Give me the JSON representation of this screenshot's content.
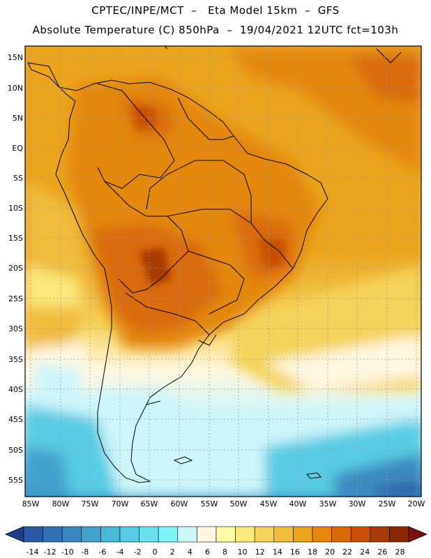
{
  "header": {
    "line1": "CPTEC/INPE/MCT  –   Eta Model 15km  –  GFS",
    "line2": "Absolute Temperature (C) 850hPa  –  19/04/2021 12UTC fct=103h"
  },
  "map": {
    "lat_labels": [
      "15N",
      "10N",
      "5N",
      "EQ",
      "5S",
      "10S",
      "15S",
      "20S",
      "25S",
      "30S",
      "35S",
      "40S",
      "45S",
      "50S",
      "55S"
    ],
    "lon_labels": [
      "85W",
      "80W",
      "75W",
      "70W",
      "65W",
      "60W",
      "55W",
      "50W",
      "45W",
      "40W",
      "35W",
      "30W",
      "25W",
      "20W"
    ]
  },
  "legend": {
    "labels": [
      "-14",
      "-12",
      "-10",
      "-8",
      "-6",
      "-4",
      "-2",
      "0",
      "2",
      "4",
      "6",
      "8",
      "10",
      "12",
      "14",
      "16",
      "18",
      "20",
      "22",
      "24",
      "26",
      "28"
    ],
    "colors": [
      "#1e3c8c",
      "#2a5aa6",
      "#3272b4",
      "#3a88c0",
      "#42a0cc",
      "#4ab8d8",
      "#58cce4",
      "#6ae0ee",
      "#80f4f8",
      "#cdf6fa",
      "#fff7e0",
      "#fffaa6",
      "#fbe87a",
      "#f5d35a",
      "#f0bc3c",
      "#eba41e",
      "#e4870c",
      "#d96a08",
      "#c85006",
      "#a83a06",
      "#8a2806",
      "#7a1010"
    ]
  }
}
